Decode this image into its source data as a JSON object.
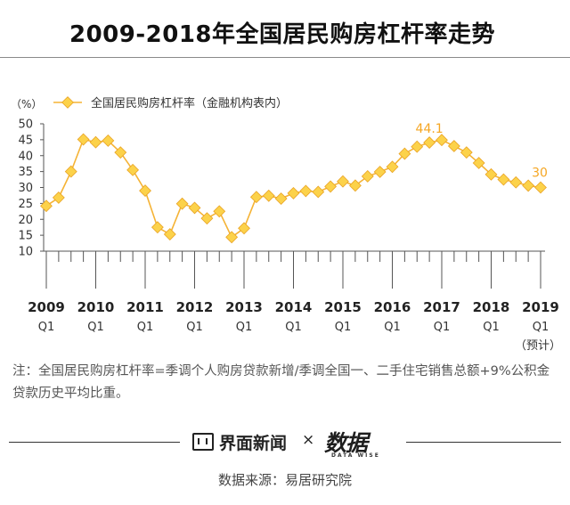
{
  "header": {
    "title": "2009-2018年全国居民购房杠杆率走势"
  },
  "chart_data": {
    "type": "line",
    "unit_label": "（%）",
    "series": [
      {
        "name": "全国居民购房杠杆率（金融机构表内）",
        "values": [
          24.2,
          26.8,
          35.0,
          45.1,
          44.2,
          44.7,
          41.0,
          35.5,
          29.0,
          17.5,
          15.3,
          24.9,
          23.6,
          20.3,
          22.5,
          14.4,
          17.2,
          27.0,
          27.4,
          26.5,
          28.2,
          28.9,
          28.6,
          30.3,
          31.9,
          30.6,
          33.5,
          34.9,
          36.5,
          40.6,
          42.8,
          44.1,
          44.9,
          43.0,
          41.0,
          37.7,
          34.1,
          32.5,
          31.6,
          30.6,
          30.0
        ]
      }
    ],
    "annotations": [
      "44.1",
      "30"
    ],
    "x_labels": [
      {
        "year": "2009",
        "quarter": "Q1"
      },
      {
        "year": "2010",
        "quarter": "Q1"
      },
      {
        "year": "2011",
        "quarter": "Q1"
      },
      {
        "year": "2012",
        "quarter": "Q1"
      },
      {
        "year": "2013",
        "quarter": "Q1"
      },
      {
        "year": "2014",
        "quarter": "Q1"
      },
      {
        "year": "2015",
        "quarter": "Q1"
      },
      {
        "year": "2016",
        "quarter": "Q1"
      },
      {
        "year": "2017",
        "quarter": "Q1"
      },
      {
        "year": "2018",
        "quarter": "Q1"
      },
      {
        "year": "2019",
        "quarter": "Q1"
      }
    ],
    "forecast_label": "（预计）",
    "y_ticks": [
      10,
      15,
      20,
      25,
      30,
      35,
      40,
      45,
      50
    ],
    "ylim": [
      10,
      50
    ],
    "grid": false,
    "legend_position": "top-left",
    "colors": {
      "line": "#f5b335",
      "marker": "#fcd24a",
      "marker_edge": "#e9a325",
      "annotation": "#f5a623",
      "axis": "#555555"
    }
  },
  "note": "注：全国居民购房杠杆率=季调个人购房贷款新增/季调全国一、二手住宅销售总额+9%公积金贷款历史平均比重。",
  "footer": {
    "brand": "界面新闻",
    "separator": "×",
    "partner": "数据",
    "partner_sub": "DATA WISE",
    "source": "数据来源：易居研究院"
  }
}
